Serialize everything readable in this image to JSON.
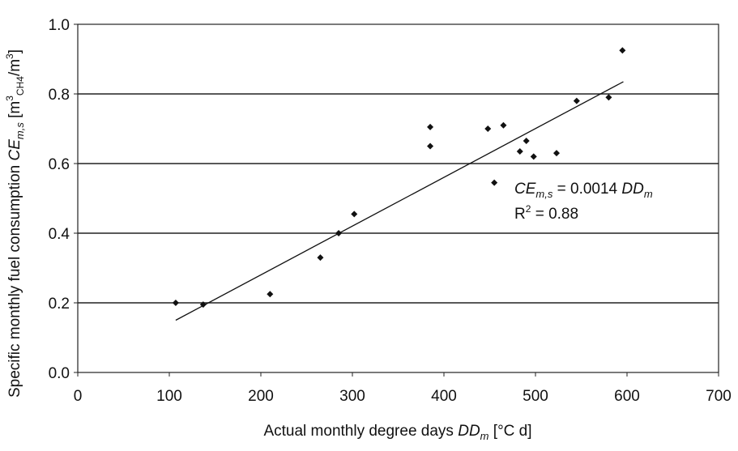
{
  "chart_data": {
    "type": "scatter",
    "xlabel": {
      "main": "Actual monthly degree days ",
      "var": "DD",
      "sub": "m",
      "unit": " [°C d]"
    },
    "ylabel": {
      "main": "Specific monthly fuel consumption ",
      "var": "CE",
      "sub": "m,s",
      "unit_open": " [m",
      "sup": "3",
      "sub2": "CH4",
      "unit_mid": "/m",
      "sup2": "3",
      "unit_close": "]"
    },
    "xlim": [
      0,
      700
    ],
    "ylim": [
      0,
      1.0
    ],
    "x_ticks": [
      "0",
      "100",
      "200",
      "300",
      "400",
      "500",
      "600",
      "700"
    ],
    "y_ticks": [
      "0.0",
      "0.2",
      "0.4",
      "0.6",
      "0.8",
      "1.0"
    ],
    "grid": "horizontal lines at 0.2, 0.4, 0.6, 0.8",
    "series": [
      {
        "points": [
          [
            107,
            0.2
          ],
          [
            137,
            0.195
          ],
          [
            210,
            0.225
          ],
          [
            265,
            0.33
          ],
          [
            285,
            0.4
          ],
          [
            302,
            0.455
          ],
          [
            385,
            0.705
          ],
          [
            385,
            0.65
          ],
          [
            448,
            0.7
          ],
          [
            455,
            0.545
          ],
          [
            465,
            0.71
          ],
          [
            483,
            0.635
          ],
          [
            490,
            0.665
          ],
          [
            498,
            0.62
          ],
          [
            523,
            0.63
          ],
          [
            545,
            0.78
          ],
          [
            580,
            0.79
          ],
          [
            595,
            0.925
          ]
        ]
      }
    ],
    "trendline": {
      "x": [
        107,
        596
      ],
      "y": [
        0.15,
        0.835
      ]
    },
    "annotation": {
      "eq_var": "CE",
      "eq_sub": "m,s",
      "eq_mid": " = 0.0014 ",
      "eq_var2": "DD",
      "eq_sub2": "m",
      "r2_prefix": "R",
      "r2_sup": "2",
      "r2_value": " = 0.88"
    }
  }
}
